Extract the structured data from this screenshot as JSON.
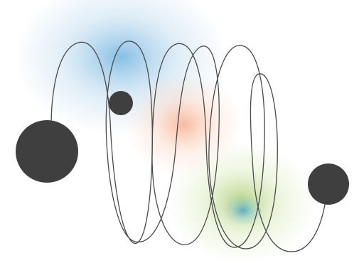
{
  "illustration": {
    "background": "#ffffff",
    "glows": [
      {
        "name": "blue-glow",
        "color": "#5ea9dc",
        "color_edge": "#a9cfea"
      },
      {
        "name": "orange-glow",
        "color": "#f5a27c",
        "color_edge": "#fbd0bb"
      },
      {
        "name": "green-glow",
        "color": "#9cc45a",
        "color_edge": "#d2e6ad"
      },
      {
        "name": "teal-glow",
        "color": "#3aa0c4",
        "color_edge": "#86c7d9"
      }
    ],
    "coil": {
      "stroke": "#4a4a4a",
      "loops": 5
    },
    "balls": {
      "color": "#3f3f3f",
      "items": [
        {
          "name": "large-ball"
        },
        {
          "name": "small-ball"
        },
        {
          "name": "medium-ball"
        }
      ]
    }
  }
}
